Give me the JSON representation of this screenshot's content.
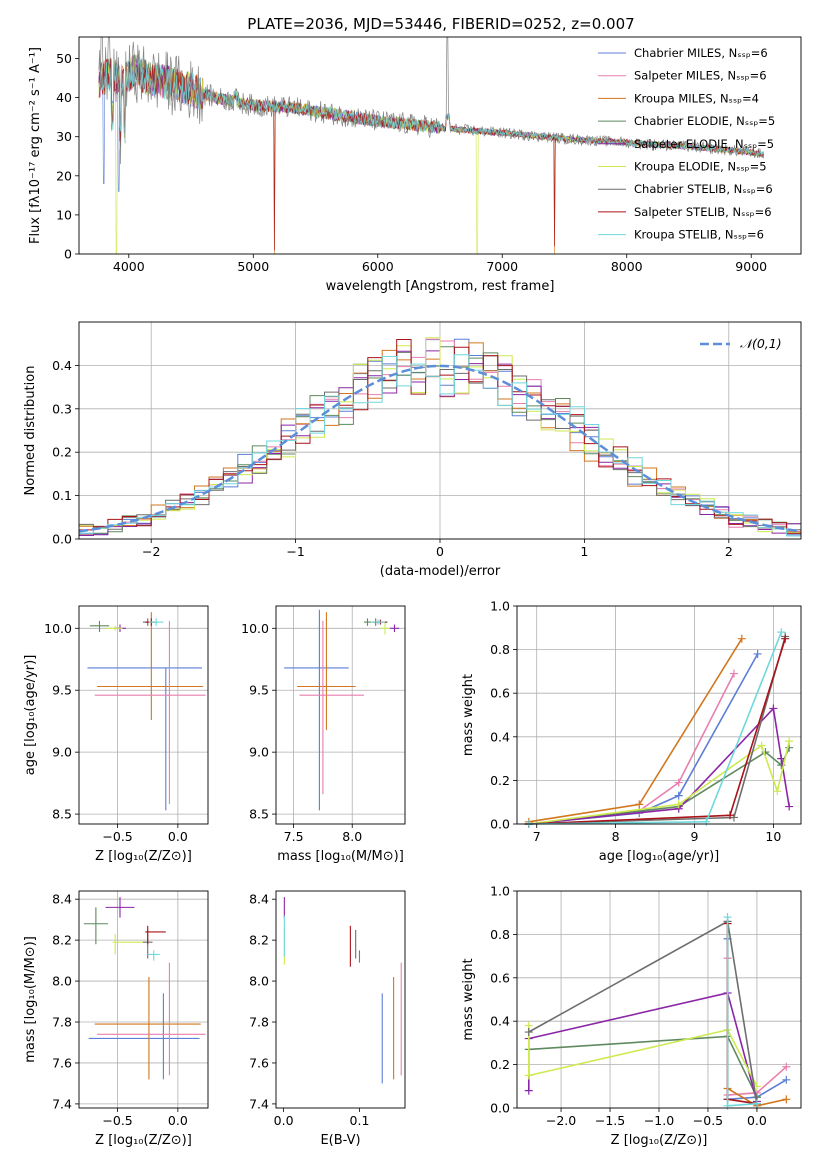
{
  "figure_title": "PLATE=2036, MJD=53446, FIBERID=0252, z=0.007",
  "palette": {
    "Chabrier MILES": "#5b7fd6",
    "Salpeter MILES": "#e87fae",
    "Kroupa MILES": "#d2771f",
    "Chabrier ELODIE": "#5f8a5f",
    "Salpeter ELODIE": "#8b26a6",
    "Kroupa ELODIE": "#cdea50",
    "Chabrier STELIB": "#6e6e6e",
    "Salpeter STELIB": "#a8141a",
    "Kroupa STELIB": "#6fd8dc"
  },
  "chart_data": [
    {
      "id": "spectrum",
      "type": "line",
      "xlabel": "wavelength [Angstrom, rest frame]",
      "ylabel": "Flux [fλ10⁻¹⁷ erg cm⁻² s⁻¹ A⁻¹]",
      "xlim": [
        3600,
        9400
      ],
      "ylim": [
        0,
        55.5
      ],
      "xticks": [
        4000,
        5000,
        6000,
        7000,
        8000,
        9000
      ],
      "yticks": [
        0,
        10,
        20,
        30,
        40,
        50
      ],
      "grid": false,
      "legend_position": "top-right",
      "continuum": {
        "x": [
          3750,
          3850,
          3950,
          4050,
          4150,
          4300,
          4500,
          4700,
          5000,
          5300,
          5600,
          6000,
          6300,
          6600,
          7000,
          7500,
          8000,
          8500,
          9000,
          9100
        ],
        "y": [
          44,
          46,
          44,
          47,
          45,
          44,
          42,
          40,
          38,
          37.5,
          36,
          34,
          33,
          32,
          31,
          29.5,
          28.5,
          27.5,
          26,
          25.5
        ]
      },
      "series": [
        {
          "name": "Chabrier MILES, Nₛₛₚ=6",
          "color": "#5b7fd6"
        },
        {
          "name": "Salpeter MILES, Nₛₛₚ=6",
          "color": "#e87fae"
        },
        {
          "name": "Kroupa MILES, Nₛₛₚ=4",
          "color": "#d2771f"
        },
        {
          "name": "Chabrier ELODIE, Nₛₛₚ=5",
          "color": "#5f8a5f"
        },
        {
          "name": "Salpeter ELODIE, Nₛₛₚ=5",
          "color": "#8b26a6"
        },
        {
          "name": "Kroupa ELODIE, Nₛₛₚ=5",
          "color": "#cdea50"
        },
        {
          "name": "Chabrier STELIB, Nₛₛₚ=6",
          "color": "#6e6e6e"
        },
        {
          "name": "Salpeter STELIB, Nₛₛₚ=6",
          "color": "#a8141a"
        },
        {
          "name": "Kroupa STELIB, Nₛₛₚ=6",
          "color": "#6fd8dc"
        }
      ]
    },
    {
      "id": "residuals",
      "type": "histogram",
      "xlabel": "(data-model)/error",
      "ylabel": "Normed distribution",
      "xlim": [
        -2.5,
        2.5
      ],
      "ylim": [
        0,
        0.5
      ],
      "xticks": [
        -2,
        -1,
        0,
        1,
        2
      ],
      "yticks": [
        0.0,
        0.1,
        0.2,
        0.3,
        0.4
      ],
      "grid": true,
      "legend_position": "top-right",
      "reference_curve": {
        "name": "𝒩(0,1)",
        "mean": 0,
        "sigma": 1,
        "color": "#5b8fd9"
      },
      "bin_width": 0.1,
      "bin_start": -2.5,
      "series_colors": [
        "#5b7fd6",
        "#e87fae",
        "#d2771f",
        "#5f8a5f",
        "#8b26a6",
        "#cdea50",
        "#6e6e6e",
        "#a8141a",
        "#6fd8dc"
      ]
    },
    {
      "id": "age_vs_Z",
      "type": "errorbar",
      "xlabel": "Z [log₁₀(Z/Z⊙)]",
      "ylabel": "age  [log₁₀(age/yr)]",
      "xlim": [
        -0.82,
        0.25
      ],
      "ylim": [
        8.42,
        10.18
      ],
      "xticks": [
        -0.5,
        0.0
      ],
      "yticks": [
        8.5,
        9.0,
        9.5,
        10.0
      ],
      "grid": true,
      "points": [
        {
          "color": "#5b7fd6",
          "x": -0.1,
          "xerr": [
            0.65,
            0.3
          ],
          "y": 9.68,
          "yerr": [
            1.15,
            0.0
          ]
        },
        {
          "color": "#d2771f",
          "x": -0.22,
          "xerr": [
            0.45,
            0.43
          ],
          "y": 9.53,
          "yerr": [
            0.27,
            0.6
          ]
        },
        {
          "color": "#e87fae",
          "x": -0.07,
          "xerr": [
            0.62,
            0.3
          ],
          "y": 9.46,
          "yerr": [
            0.88,
            0.6
          ]
        },
        {
          "color": "#5f8a5f",
          "x": -0.65,
          "xerr": [
            0.08,
            0.08
          ],
          "y": 10.02,
          "yerr": [
            0.05,
            0.04
          ]
        },
        {
          "color": "#8b26a6",
          "x": -0.48,
          "xerr": [
            0.05,
            0.05
          ],
          "y": 10.0,
          "yerr": [
            0.03,
            0.03
          ]
        },
        {
          "color": "#cdea50",
          "x": -0.52,
          "xerr": [
            0.08,
            0.06
          ],
          "y": 10.0,
          "yerr": [
            0.02,
            0.02
          ]
        },
        {
          "color": "#6e6e6e",
          "x": -0.25,
          "xerr": [
            0.04,
            0.04
          ],
          "y": 10.05,
          "yerr": [
            0.03,
            0.03
          ]
        },
        {
          "color": "#a8141a",
          "x": -0.22,
          "xerr": [
            0.05,
            0.05
          ],
          "y": 10.05,
          "yerr": [
            0.03,
            0.03
          ]
        },
        {
          "color": "#6fd8dc",
          "x": -0.18,
          "xerr": [
            0.06,
            0.06
          ],
          "y": 10.05,
          "yerr": [
            0.03,
            0.03
          ]
        }
      ]
    },
    {
      "id": "age_vs_mass",
      "type": "errorbar",
      "xlabel": "mass [log₁₀(M/M⊙)]",
      "ylabel": "",
      "xlim": [
        7.35,
        8.45
      ],
      "ylim": [
        8.42,
        10.18
      ],
      "xticks": [
        7.5,
        8.0
      ],
      "yticks": [
        8.5,
        9.0,
        9.5,
        10.0
      ],
      "grid": true,
      "points": [
        {
          "color": "#5b7fd6",
          "x": 7.72,
          "xerr": [
            0.3,
            0.25
          ],
          "y": 9.68,
          "yerr": [
            1.15,
            0.47
          ]
        },
        {
          "color": "#d2771f",
          "x": 7.78,
          "xerr": [
            0.25,
            0.25
          ],
          "y": 9.53,
          "yerr": [
            0.35,
            0.6
          ]
        },
        {
          "color": "#e87fae",
          "x": 7.75,
          "xerr": [
            0.2,
            0.35
          ],
          "y": 9.46,
          "yerr": [
            0.8,
            0.6
          ]
        },
        {
          "color": "#5f8a5f",
          "x": 8.13,
          "xerr": [
            0.03,
            0.03
          ],
          "y": 10.05,
          "yerr": [
            0.03,
            0.03
          ]
        },
        {
          "color": "#8b26a6",
          "x": 8.36,
          "xerr": [
            0.04,
            0.04
          ],
          "y": 10.0,
          "yerr": [
            0.03,
            0.03
          ]
        },
        {
          "color": "#cdea50",
          "x": 8.28,
          "xerr": [
            0.04,
            0.04
          ],
          "y": 10.0,
          "yerr": [
            0.05,
            0.05
          ]
        },
        {
          "color": "#6e6e6e",
          "x": 8.2,
          "xerr": [
            0.03,
            0.03
          ],
          "y": 10.05,
          "yerr": [
            0.03,
            0.03
          ]
        },
        {
          "color": "#a8141a",
          "x": 8.24,
          "xerr": [
            0.06,
            0.06
          ],
          "y": 10.05,
          "yerr": [
            0.02,
            0.02
          ]
        },
        {
          "color": "#6fd8dc",
          "x": 8.22,
          "xerr": [
            0.06,
            0.06
          ],
          "y": 10.05,
          "yerr": [
            0.02,
            0.02
          ]
        }
      ]
    },
    {
      "id": "massweight_vs_age",
      "type": "line",
      "xlabel": "age  [log₁₀(age/yr)]",
      "ylabel": "mass weight",
      "xlim": [
        6.75,
        10.35
      ],
      "ylim": [
        0,
        1.0
      ],
      "xticks": [
        7,
        8,
        9,
        10
      ],
      "yticks": [
        0.0,
        0.2,
        0.4,
        0.6,
        0.8,
        1.0
      ],
      "grid": true,
      "series": [
        {
          "color": "#5b7fd6",
          "x": [
            6.9,
            8.3,
            8.8,
            9.8
          ],
          "y": [
            0.0,
            0.05,
            0.13,
            0.78
          ]
        },
        {
          "color": "#e87fae",
          "x": [
            6.9,
            8.3,
            8.8,
            9.5
          ],
          "y": [
            0.0,
            0.06,
            0.19,
            0.69
          ]
        },
        {
          "color": "#d2771f",
          "x": [
            6.9,
            8.3,
            9.6
          ],
          "y": [
            0.01,
            0.09,
            0.85
          ]
        },
        {
          "color": "#5f8a5f",
          "x": [
            6.9,
            8.8,
            9.9,
            10.1,
            10.2
          ],
          "y": [
            0.0,
            0.08,
            0.33,
            0.27,
            0.35
          ]
        },
        {
          "color": "#8b26a6",
          "x": [
            6.9,
            8.8,
            10.0,
            10.1,
            10.2
          ],
          "y": [
            0.0,
            0.07,
            0.53,
            0.3,
            0.08
          ]
        },
        {
          "color": "#cdea50",
          "x": [
            6.9,
            8.8,
            9.85,
            10.05,
            10.2
          ],
          "y": [
            0.0,
            0.09,
            0.36,
            0.15,
            0.38
          ]
        },
        {
          "color": "#6e6e6e",
          "x": [
            6.9,
            9.5,
            10.15
          ],
          "y": [
            0.0,
            0.03,
            0.86
          ]
        },
        {
          "color": "#a8141a",
          "x": [
            6.9,
            9.45,
            10.15
          ],
          "y": [
            0.0,
            0.04,
            0.85
          ]
        },
        {
          "color": "#6fd8dc",
          "x": [
            6.9,
            9.15,
            10.1
          ],
          "y": [
            0.0,
            0.01,
            0.88
          ]
        }
      ]
    },
    {
      "id": "mass_vs_Z",
      "type": "errorbar",
      "xlabel": "Z [log₁₀(Z/Z⊙)]",
      "ylabel": "mass [log₁₀(M/M⊙)]",
      "xlim": [
        -0.82,
        0.25
      ],
      "ylim": [
        7.38,
        8.44
      ],
      "xticks": [
        -0.5,
        0.0
      ],
      "yticks": [
        7.4,
        7.6,
        7.8,
        8.0,
        8.2,
        8.4
      ],
      "grid": true,
      "points": [
        {
          "color": "#5b7fd6",
          "x": -0.12,
          "xerr": [
            0.62,
            0.3
          ],
          "y": 7.72,
          "yerr": [
            0.2,
            0.22
          ]
        },
        {
          "color": "#d2771f",
          "x": -0.24,
          "xerr": [
            0.45,
            0.43
          ],
          "y": 7.79,
          "yerr": [
            0.27,
            0.23
          ]
        },
        {
          "color": "#e87fae",
          "x": -0.07,
          "xerr": [
            0.6,
            0.3
          ],
          "y": 7.74,
          "yerr": [
            0.2,
            0.35
          ]
        },
        {
          "color": "#5f8a5f",
          "x": -0.68,
          "xerr": [
            0.1,
            0.1
          ],
          "y": 8.28,
          "yerr": [
            0.1,
            0.08
          ]
        },
        {
          "color": "#8b26a6",
          "x": -0.48,
          "xerr": [
            0.12,
            0.12
          ],
          "y": 8.36,
          "yerr": [
            0.05,
            0.05
          ]
        },
        {
          "color": "#cdea50",
          "x": -0.52,
          "xerr": [
            0.02,
            0.25
          ],
          "y": 8.19,
          "yerr": [
            0.06,
            0.04
          ]
        },
        {
          "color": "#6e6e6e",
          "x": -0.25,
          "xerr": [
            0.04,
            0.04
          ],
          "y": 8.19,
          "yerr": [
            0.08,
            0.06
          ]
        },
        {
          "color": "#a8141a",
          "x": -0.25,
          "xerr": [
            0.02,
            0.15
          ],
          "y": 8.24,
          "yerr": [
            0.06,
            0.03
          ]
        },
        {
          "color": "#6fd8dc",
          "x": -0.2,
          "xerr": [
            0.05,
            0.05
          ],
          "y": 8.13,
          "yerr": [
            0.03,
            0.02
          ]
        }
      ]
    },
    {
      "id": "mass_vs_EBV",
      "type": "errorbar",
      "xlabel": "E(B-V)",
      "ylabel": "",
      "xlim": [
        -0.01,
        0.16
      ],
      "ylim": [
        7.38,
        8.44
      ],
      "xticks": [
        0.0,
        0.1
      ],
      "yticks": [
        7.4,
        7.6,
        7.8,
        8.0,
        8.2,
        8.4
      ],
      "grid": false,
      "points": [
        {
          "color": "#5b7fd6",
          "x": 0.13,
          "xerr": [
            0,
            0
          ],
          "y": 7.72,
          "yerr": [
            0.22,
            0.22
          ]
        },
        {
          "color": "#d2771f",
          "x": 0.145,
          "xerr": [
            0,
            0
          ],
          "y": 7.79,
          "yerr": [
            0.27,
            0.23
          ]
        },
        {
          "color": "#e87fae",
          "x": 0.155,
          "xerr": [
            0,
            0
          ],
          "y": 7.74,
          "yerr": [
            0.2,
            0.35
          ]
        },
        {
          "color": "#5f8a5f",
          "x": 0.1,
          "xerr": [
            0,
            0
          ],
          "y": 8.13,
          "yerr": [
            0.04,
            0.02
          ]
        },
        {
          "color": "#8b26a6",
          "x": 0.001,
          "xerr": [
            0,
            0
          ],
          "y": 8.36,
          "yerr": [
            0.05,
            0.05
          ]
        },
        {
          "color": "#cdea50",
          "x": 0.001,
          "xerr": [
            0,
            0
          ],
          "y": 8.18,
          "yerr": [
            0.1,
            0.08
          ]
        },
        {
          "color": "#6e6e6e",
          "x": 0.095,
          "xerr": [
            0,
            0
          ],
          "y": 8.19,
          "yerr": [
            0.08,
            0.06
          ]
        },
        {
          "color": "#a8141a",
          "x": 0.088,
          "xerr": [
            0,
            0
          ],
          "y": 8.17,
          "yerr": [
            0.1,
            0.1
          ]
        },
        {
          "color": "#6fd8dc",
          "x": 0.001,
          "xerr": [
            0,
            0
          ],
          "y": 8.22,
          "yerr": [
            0.1,
            0.1
          ]
        }
      ]
    },
    {
      "id": "massweight_vs_Z",
      "type": "line",
      "xlabel": "Z [log₁₀(Z/Z⊙)]",
      "ylabel": "mass weight",
      "xlim": [
        -2.45,
        0.45
      ],
      "ylim": [
        0,
        1.0
      ],
      "xticks": [
        -2.0,
        -1.5,
        -1.0,
        -0.5,
        0.0
      ],
      "yticks": [
        0.0,
        0.2,
        0.4,
        0.6,
        0.8,
        1.0
      ],
      "grid": true,
      "series": [
        {
          "color": "#5b7fd6",
          "x": [
            -0.3,
            -0.3,
            0.0,
            0.3
          ],
          "y": [
            0.78,
            0.04,
            0.05,
            0.13
          ]
        },
        {
          "color": "#e87fae",
          "x": [
            -0.3,
            -0.3,
            0.0,
            0.3
          ],
          "y": [
            0.69,
            0.06,
            0.07,
            0.19
          ]
        },
        {
          "color": "#d2771f",
          "x": [
            -0.3,
            -0.3,
            0.0,
            0.3
          ],
          "y": [
            0.85,
            0.09,
            0.01,
            0.04
          ]
        },
        {
          "color": "#5f8a5f",
          "x": [
            -2.33,
            -0.3,
            0.0
          ],
          "y": [
            0.27,
            0.33,
            0.05
          ]
        },
        {
          "color": "#8b26a6",
          "x": [
            -2.33,
            -2.33,
            -0.3,
            0.0
          ],
          "y": [
            0.08,
            0.32,
            0.53,
            0.03
          ]
        },
        {
          "color": "#cdea50",
          "x": [
            -2.33,
            -2.33,
            -0.3,
            0.0
          ],
          "y": [
            0.38,
            0.15,
            0.36,
            0.1
          ]
        },
        {
          "color": "#6e6e6e",
          "x": [
            -2.33,
            -0.3,
            0.0
          ],
          "y": [
            0.35,
            0.86,
            0.02
          ]
        },
        {
          "color": "#a8141a",
          "x": [
            -0.3,
            -0.3,
            0.0
          ],
          "y": [
            0.85,
            0.04,
            0.02
          ]
        },
        {
          "color": "#6fd8dc",
          "x": [
            -0.3,
            -0.3,
            0.0
          ],
          "y": [
            0.88,
            0.01,
            0.02
          ]
        }
      ]
    }
  ]
}
